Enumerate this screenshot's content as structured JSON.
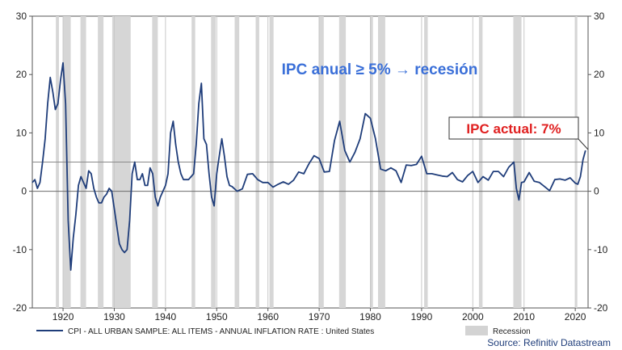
{
  "chart_data": {
    "type": "line",
    "title": "",
    "xlabel": "",
    "ylabel": "",
    "xlim": [
      1914,
      2022.5
    ],
    "ylim": [
      -20,
      30
    ],
    "yticks": [
      -20,
      -10,
      0,
      10,
      20,
      30
    ],
    "xticks": [
      1920,
      1930,
      1940,
      1950,
      1960,
      1970,
      1980,
      1990,
      2000,
      2010,
      2020
    ],
    "grid": "vertical-only",
    "threshold": 5,
    "annotation_headline": "IPC anual ≥ 5% → recesión",
    "annotation_current": "IPC actual: 7%",
    "source": "Source: Refinitiv Datastream",
    "legend": {
      "position": "bottom",
      "series_label": "CPI - ALL URBAN SAMPLE: ALL ITEMS - ANNUAL INFLATION RATE : United States",
      "recession_label": "Recession"
    },
    "recessions": [
      [
        1918.6,
        1919.2
      ],
      [
        1920.0,
        1921.5
      ],
      [
        1923.4,
        1924.5
      ],
      [
        1926.8,
        1927.9
      ],
      [
        1929.6,
        1933.2
      ],
      [
        1937.4,
        1938.5
      ],
      [
        1945.1,
        1945.8
      ],
      [
        1948.9,
        1949.8
      ],
      [
        1953.5,
        1954.4
      ],
      [
        1957.6,
        1958.3
      ],
      [
        1960.3,
        1961.1
      ],
      [
        1969.9,
        1970.9
      ],
      [
        1973.9,
        1975.2
      ],
      [
        1980.0,
        1980.5
      ],
      [
        1981.5,
        1982.9
      ],
      [
        1990.5,
        1991.2
      ],
      [
        2001.2,
        2001.9
      ],
      [
        2007.9,
        2009.5
      ],
      [
        2020.1,
        2020.4
      ]
    ],
    "series": [
      {
        "color": "#1f3d7a",
        "x": [
          1914.0,
          1914.5,
          1915.0,
          1915.5,
          1916.0,
          1916.5,
          1917.0,
          1917.5,
          1918.0,
          1918.5,
          1919.0,
          1919.5,
          1920.0,
          1920.5,
          1921.0,
          1921.5,
          1922.0,
          1922.5,
          1923.0,
          1923.5,
          1924.0,
          1924.5,
          1925.0,
          1925.5,
          1926.0,
          1926.5,
          1927.0,
          1927.5,
          1928.0,
          1928.5,
          1929.0,
          1929.5,
          1930.0,
          1930.5,
          1931.0,
          1931.5,
          1932.0,
          1932.5,
          1933.0,
          1933.5,
          1934.0,
          1934.5,
          1935.0,
          1935.5,
          1936.0,
          1936.5,
          1937.0,
          1937.5,
          1938.0,
          1938.5,
          1939.0,
          1939.5,
          1940.0,
          1940.5,
          1941.0,
          1941.5,
          1942.0,
          1942.5,
          1943.0,
          1943.5,
          1944.0,
          1944.5,
          1945.0,
          1945.5,
          1946.0,
          1946.5,
          1947.0,
          1947.5,
          1948.0,
          1948.5,
          1949.0,
          1949.5,
          1950.0,
          1950.5,
          1951.0,
          1951.5,
          1952.0,
          1952.5,
          1953.0,
          1954.0,
          1955.0,
          1956.0,
          1957.0,
          1958.0,
          1959.0,
          1960.0,
          1961.0,
          1962.0,
          1963.0,
          1964.0,
          1965.0,
          1966.0,
          1967.0,
          1968.0,
          1969.0,
          1970.0,
          1971.0,
          1972.0,
          1973.0,
          1974.0,
          1975.0,
          1976.0,
          1977.0,
          1978.0,
          1979.0,
          1980.0,
          1981.0,
          1982.0,
          1983.0,
          1984.0,
          1985.0,
          1986.0,
          1987.0,
          1988.0,
          1989.0,
          1990.0,
          1991.0,
          1992.0,
          1993.0,
          1994.0,
          1995.0,
          1996.0,
          1997.0,
          1998.0,
          1999.0,
          2000.0,
          2001.0,
          2002.0,
          2003.0,
          2004.0,
          2005.0,
          2006.0,
          2007.0,
          2008.0,
          2008.5,
          2009.0,
          2009.5,
          2010.0,
          2011.0,
          2012.0,
          2013.0,
          2014.0,
          2015.0,
          2016.0,
          2017.0,
          2018.0,
          2019.0,
          2020.0,
          2020.5,
          2021.0,
          2021.5,
          2022.0
        ],
        "values": [
          1.5,
          2.0,
          0.5,
          1.5,
          5.0,
          9.0,
          15.0,
          19.5,
          17.0,
          14.0,
          15.0,
          19.0,
          22.0,
          15.0,
          -5.0,
          -13.5,
          -8.0,
          -4.0,
          1.0,
          2.5,
          1.5,
          0.5,
          3.5,
          3.0,
          0.5,
          -1.0,
          -2.0,
          -2.0,
          -1.0,
          -0.5,
          0.5,
          0.0,
          -3.0,
          -6.0,
          -9.0,
          -10.0,
          -10.5,
          -10.0,
          -5.0,
          3.0,
          5.0,
          2.0,
          2.0,
          3.0,
          1.0,
          1.0,
          4.0,
          3.0,
          -1.0,
          -2.5,
          -1.0,
          0.0,
          1.0,
          3.0,
          10.0,
          12.0,
          8.0,
          5.0,
          3.0,
          2.0,
          2.0,
          2.0,
          2.5,
          3.0,
          8.0,
          15.0,
          18.5,
          9.0,
          8.0,
          3.0,
          -1.0,
          -2.5,
          3.0,
          6.0,
          9.0,
          6.0,
          2.5,
          1.0,
          0.8,
          0.0,
          0.4,
          2.9,
          3.0,
          2.0,
          1.5,
          1.5,
          0.7,
          1.2,
          1.6,
          1.2,
          1.9,
          3.3,
          3.0,
          4.7,
          6.1,
          5.6,
          3.3,
          3.4,
          8.7,
          12.0,
          7.0,
          5.0,
          6.7,
          9.0,
          13.3,
          12.5,
          9.0,
          3.8,
          3.5,
          4.0,
          3.5,
          1.5,
          4.5,
          4.4,
          4.6,
          6.0,
          3.0,
          3.0,
          2.8,
          2.6,
          2.5,
          3.2,
          2.0,
          1.6,
          2.7,
          3.4,
          1.5,
          2.5,
          1.9,
          3.4,
          3.4,
          2.5,
          4.1,
          5.0,
          0.5,
          -1.5,
          1.5,
          1.6,
          3.2,
          1.7,
          1.5,
          0.8,
          0.1,
          2.0,
          2.1,
          1.9,
          2.3,
          1.4,
          1.2,
          2.5,
          5.4,
          7.0
        ]
      }
    ]
  }
}
